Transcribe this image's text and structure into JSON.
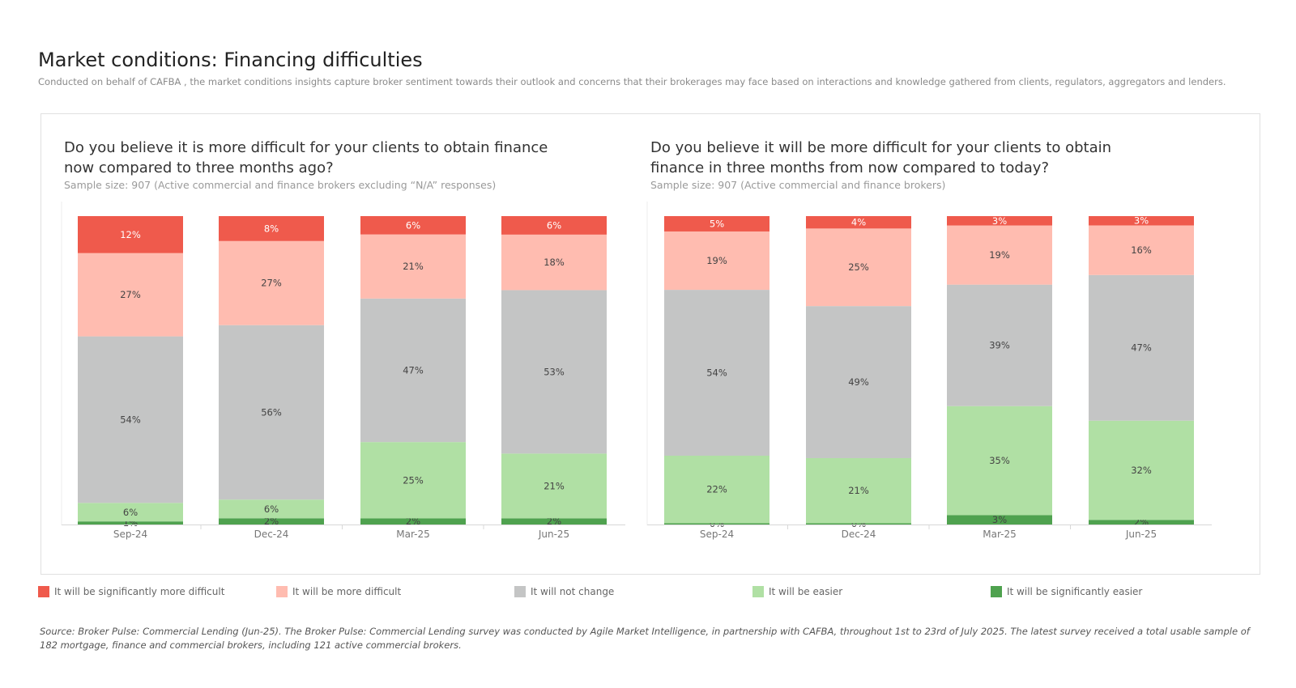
{
  "title": "Market conditions: Financing difficulties",
  "subtitle": "Conducted on behalf of CAFBA , the market conditions insights capture broker sentiment towards their outlook and concerns that their brokerages may face based on interactions and knowledge gathered from clients, regulators, aggregators and lenders.",
  "colors": {
    "sig_more": "#ef5a4c",
    "more": "#ffbcb0",
    "no_change": "#c4c5c5",
    "easier": "#b0e0a4",
    "sig_easier": "#4fa24f"
  },
  "legend": [
    {
      "label": "It will be significantly more difficult",
      "color_key": "sig_more"
    },
    {
      "label": "It will be more difficult",
      "color_key": "more"
    },
    {
      "label": "It will not change",
      "color_key": "no_change"
    },
    {
      "label": "It will be easier",
      "color_key": "easier"
    },
    {
      "label": "It will be significantly easier",
      "color_key": "sig_easier"
    }
  ],
  "source": "Source: Broker Pulse: Commercial Lending (Jun-25). The Broker Pulse: Commercial Lending survey was conducted by Agile Market Intelligence, in partnership with CAFBA, throughout 1st to 23rd of July 2025. The latest survey received a total usable sample of 182 mortgage, finance and commercial brokers, including 121 active commercial brokers.",
  "chart_data": [
    {
      "type": "bar",
      "stacked": true,
      "title": "Do you believe it is more difficult for your clients to obtain finance now compared to three months ago?",
      "subtitle": "Sample size: 907 (Active commercial and finance brokers  excluding “N/A” responses)",
      "categories": [
        "Sep-24",
        "Dec-24",
        "Mar-25",
        "Jun-25"
      ],
      "ylim": [
        0,
        100
      ],
      "series": [
        {
          "name": "It will be significantly easier",
          "color_key": "sig_easier",
          "values": [
            1,
            2,
            2,
            2
          ]
        },
        {
          "name": "It will be easier",
          "color_key": "easier",
          "values": [
            6,
            6,
            25,
            21
          ]
        },
        {
          "name": "It will not change",
          "color_key": "no_change",
          "values": [
            54,
            56,
            47,
            53
          ]
        },
        {
          "name": "It will be more difficult",
          "color_key": "more",
          "values": [
            27,
            27,
            21,
            18
          ]
        },
        {
          "name": "It will be significantly more difficult",
          "color_key": "sig_more",
          "values": [
            12,
            8,
            6,
            6
          ]
        }
      ],
      "labels": [
        [
          "1%",
          "2%",
          "2%",
          "2%"
        ],
        [
          "6%",
          "6%",
          "25%",
          "21%"
        ],
        [
          "54%",
          "56%",
          "47%",
          "53%"
        ],
        [
          "27%",
          "27%",
          "21%",
          "18%"
        ],
        [
          "12%",
          "8%",
          "6%",
          "6%"
        ]
      ]
    },
    {
      "type": "bar",
      "stacked": true,
      "title": "Do you believe it will be more difficult for your clients to obtain finance in three months from now compared to today?",
      "subtitle": "Sample size: 907 (Active commercial and finance brokers)",
      "categories": [
        "Sep-24",
        "Dec-24",
        "Mar-25",
        "Jun-25"
      ],
      "ylim": [
        0,
        100
      ],
      "series": [
        {
          "name": "It will be significantly easier",
          "color_key": "sig_easier",
          "values": [
            0.4,
            0.4,
            3,
            1.5
          ]
        },
        {
          "name": "It will be easier",
          "color_key": "easier",
          "values": [
            22,
            21,
            35,
            32
          ]
        },
        {
          "name": "It will not change",
          "color_key": "no_change",
          "values": [
            54,
            49,
            39,
            47
          ]
        },
        {
          "name": "It will be more difficult",
          "color_key": "more",
          "values": [
            19,
            25,
            19,
            16
          ]
        },
        {
          "name": "It will be significantly more difficult",
          "color_key": "sig_more",
          "values": [
            5,
            4,
            3,
            3
          ]
        }
      ],
      "labels": [
        [
          "0%",
          "0%",
          "3%",
          "2%"
        ],
        [
          "22%",
          "21%",
          "35%",
          "32%"
        ],
        [
          "54%",
          "49%",
          "39%",
          "47%"
        ],
        [
          "19%",
          "25%",
          "19%",
          "16%"
        ],
        [
          "5%",
          "4%",
          "3%",
          "3%"
        ]
      ]
    }
  ]
}
